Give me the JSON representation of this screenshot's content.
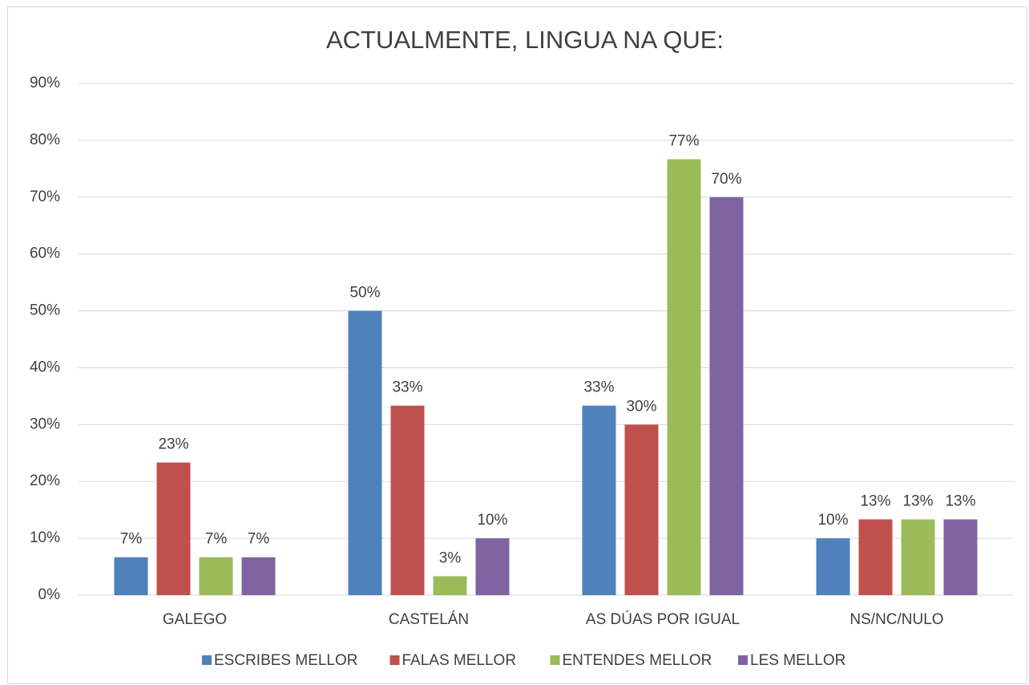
{
  "chart_data": {
    "type": "bar",
    "title": "ACTUALMENTE, LINGUA NA QUE:",
    "categories": [
      "GALEGO",
      "CASTELÁN",
      "AS DÚAS POR IGUAL",
      "NS/NC/NULO"
    ],
    "series": [
      {
        "name": "ESCRIBES MELLOR",
        "color": "#4f81bd",
        "values": [
          6.67,
          50,
          33.33,
          10
        ],
        "value_labels": [
          "7%",
          "50%",
          "33%",
          "10%"
        ]
      },
      {
        "name": "FALAS MELLOR",
        "color": "#c0504d",
        "values": [
          23.33,
          33.33,
          30,
          13.33
        ],
        "value_labels": [
          "23%",
          "33%",
          "30%",
          "13%"
        ]
      },
      {
        "name": "ENTENDES MELLOR",
        "color": "#9bbb59",
        "values": [
          6.67,
          3.33,
          76.67,
          13.33
        ],
        "value_labels": [
          "7%",
          "3%",
          "77%",
          "13%"
        ]
      },
      {
        "name": "LES MELLOR",
        "color": "#8064a2",
        "values": [
          6.67,
          10,
          70,
          13.33
        ],
        "value_labels": [
          "7%",
          "10%",
          "70%",
          "13%"
        ]
      }
    ],
    "ylim": [
      0,
      90
    ],
    "yticks": [
      {
        "value": 0,
        "label": "0%"
      },
      {
        "value": 10,
        "label": "10%"
      },
      {
        "value": 20,
        "label": "20%"
      },
      {
        "value": 30,
        "label": "30%"
      },
      {
        "value": 40,
        "label": "40%"
      },
      {
        "value": 50,
        "label": "50%"
      },
      {
        "value": 60,
        "label": "60%"
      },
      {
        "value": 70,
        "label": "70%"
      },
      {
        "value": 80,
        "label": "80%"
      },
      {
        "value": 90,
        "label": "90%"
      }
    ],
    "grid": true,
    "legend": "bottom"
  }
}
